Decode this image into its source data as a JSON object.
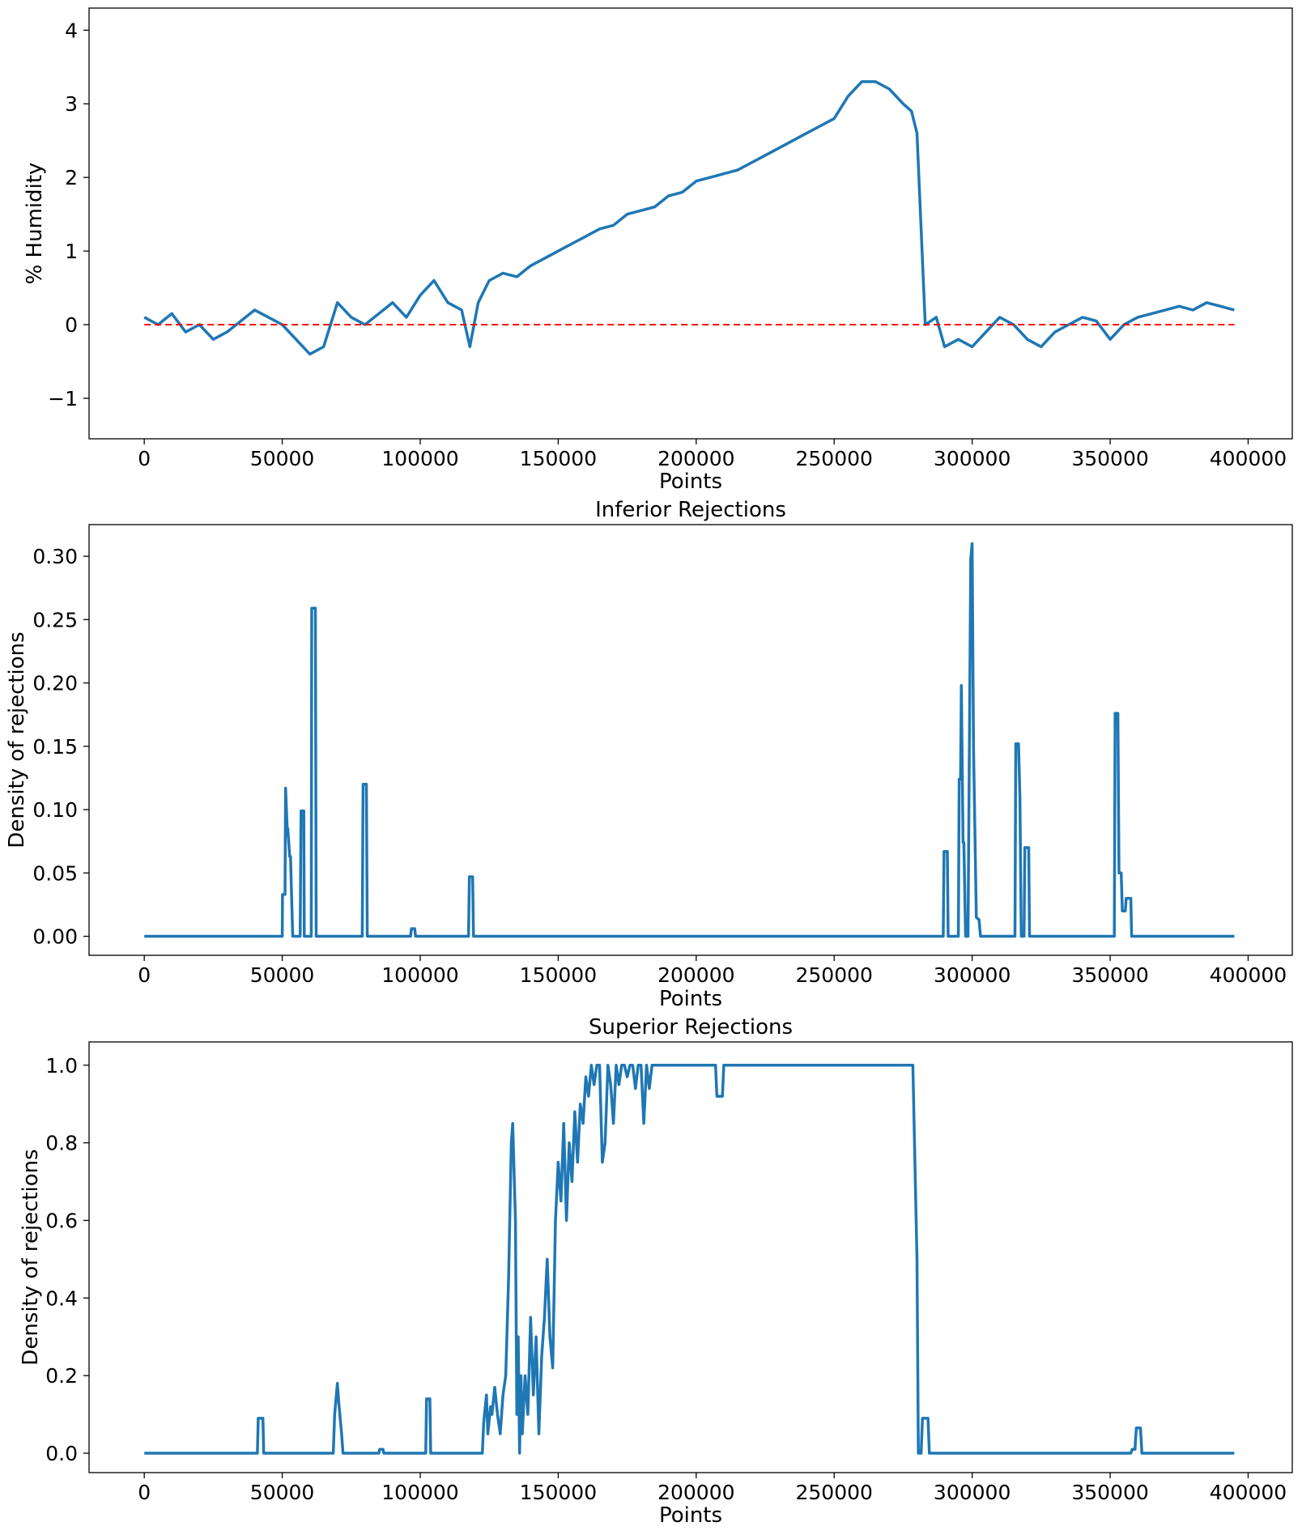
{
  "chart_data": [
    {
      "type": "line",
      "title": "",
      "xlabel": "Points",
      "ylabel": "% Humidity",
      "xlim": [
        -20000,
        416000
      ],
      "ylim": [
        -1.55,
        4.3
      ],
      "xticks": [
        0,
        50000,
        100000,
        150000,
        200000,
        250000,
        300000,
        350000,
        400000
      ],
      "xtick_labels": [
        "0",
        "50000",
        "100000",
        "150000",
        "200000",
        "250000",
        "300000",
        "350000",
        "400000"
      ],
      "yticks": [
        -1,
        0,
        1,
        2,
        3,
        4
      ],
      "ytick_labels": [
        "−1",
        "0",
        "1",
        "2",
        "3",
        "4"
      ],
      "grid": false,
      "series": [
        {
          "name": "humidity",
          "color": "#1f77b4",
          "x": [
            0,
            5000,
            10000,
            15000,
            20000,
            25000,
            30000,
            35000,
            40000,
            45000,
            50000,
            55000,
            60000,
            65000,
            70000,
            75000,
            80000,
            85000,
            90000,
            95000,
            100000,
            105000,
            110000,
            115000,
            118000,
            121000,
            125000,
            130000,
            135000,
            140000,
            145000,
            150000,
            155000,
            160000,
            165000,
            170000,
            175000,
            180000,
            185000,
            190000,
            195000,
            200000,
            205000,
            210000,
            215000,
            220000,
            225000,
            230000,
            235000,
            240000,
            245000,
            250000,
            255000,
            260000,
            265000,
            270000,
            275000,
            278000,
            280000,
            283000,
            287000,
            290000,
            295000,
            300000,
            305000,
            310000,
            315000,
            320000,
            325000,
            330000,
            335000,
            340000,
            345000,
            350000,
            355000,
            360000,
            365000,
            370000,
            375000,
            380000,
            385000,
            390000,
            395000
          ],
          "y": [
            0.1,
            0.0,
            0.15,
            -0.1,
            0.0,
            -0.2,
            -0.1,
            0.05,
            0.2,
            0.1,
            0.0,
            -0.2,
            -0.4,
            -0.3,
            0.3,
            0.1,
            0.0,
            0.15,
            0.3,
            0.1,
            0.4,
            0.6,
            0.3,
            0.2,
            -0.3,
            0.3,
            0.6,
            0.7,
            0.65,
            0.8,
            0.9,
            1.0,
            1.1,
            1.2,
            1.3,
            1.35,
            1.5,
            1.55,
            1.6,
            1.75,
            1.8,
            1.95,
            2.0,
            2.05,
            2.1,
            2.2,
            2.3,
            2.4,
            2.5,
            2.6,
            2.7,
            2.8,
            3.1,
            3.3,
            3.3,
            3.2,
            3.0,
            2.9,
            2.6,
            0.0,
            0.1,
            -0.3,
            -0.2,
            -0.3,
            -0.1,
            0.1,
            0.0,
            -0.2,
            -0.3,
            -0.1,
            0.0,
            0.1,
            0.05,
            -0.2,
            0.0,
            0.1,
            0.15,
            0.2,
            0.25,
            0.2,
            0.3,
            0.25,
            0.2
          ]
        },
        {
          "name": "zero reference",
          "color": "#ff0000",
          "style": "dashed",
          "x": [
            0,
            395000
          ],
          "y": [
            0,
            0
          ]
        }
      ]
    },
    {
      "type": "line",
      "title": "Inferior Rejections",
      "xlabel": "Points",
      "ylabel": "Density of rejections",
      "xlim": [
        -20000,
        416000
      ],
      "ylim": [
        -0.015,
        0.325
      ],
      "xticks": [
        0,
        50000,
        100000,
        150000,
        200000,
        250000,
        300000,
        350000,
        400000
      ],
      "xtick_labels": [
        "0",
        "50000",
        "100000",
        "150000",
        "200000",
        "250000",
        "300000",
        "350000",
        "400000"
      ],
      "yticks": [
        0.0,
        0.05,
        0.1,
        0.15,
        0.2,
        0.25,
        0.3
      ],
      "ytick_labels": [
        "0.00",
        "0.05",
        "0.10",
        "0.15",
        "0.20",
        "0.25",
        "0.30"
      ],
      "grid": false,
      "series": [
        {
          "name": "inferior",
          "color": "#1f77b4",
          "x": [
            0,
            50000,
            50100,
            51000,
            51200,
            51800,
            52000,
            52700,
            53000,
            53800,
            54000,
            55000,
            55500,
            56500,
            56800,
            57800,
            58000,
            60500,
            60700,
            62000,
            62300,
            79000,
            79300,
            80500,
            80800,
            96500,
            96800,
            98000,
            98300,
            117500,
            117800,
            119000,
            119300,
            289500,
            289800,
            291000,
            291300,
            295000,
            295300,
            295800,
            296100,
            296700,
            297000,
            297600,
            298500,
            299500,
            300000,
            300500,
            301000,
            301500,
            302500,
            303000,
            315500,
            315800,
            316800,
            317300,
            317800,
            318800,
            319100,
            320500,
            320800,
            351500,
            351800,
            352800,
            353200,
            354000,
            354400,
            355500,
            355800,
            357500,
            357800,
            395000
          ],
          "y": [
            0,
            0,
            0.033,
            0.033,
            0.117,
            0.085,
            0.085,
            0.063,
            0.063,
            0,
            0,
            0,
            0,
            0,
            0.099,
            0.099,
            0,
            0,
            0.259,
            0.259,
            0,
            0,
            0.12,
            0.12,
            0,
            0,
            0.006,
            0.006,
            0,
            0,
            0.047,
            0.047,
            0,
            0,
            0.067,
            0.067,
            0,
            0,
            0.124,
            0.124,
            0.198,
            0.074,
            0.074,
            0.0,
            0.0,
            0.298,
            0.31,
            0.15,
            0.08,
            0.015,
            0.013,
            0,
            0,
            0.152,
            0.152,
            0.11,
            0,
            0,
            0.07,
            0.07,
            0,
            0,
            0.176,
            0.176,
            0.05,
            0.05,
            0.02,
            0.02,
            0.03,
            0.03,
            0,
            0
          ]
        }
      ]
    },
    {
      "type": "line",
      "title": "Superior Rejections",
      "xlabel": "Points",
      "ylabel": "Density of rejections",
      "xlim": [
        -20000,
        416000
      ],
      "ylim": [
        -0.05,
        1.06
      ],
      "xticks": [
        0,
        50000,
        100000,
        150000,
        200000,
        250000,
        300000,
        350000,
        400000
      ],
      "xtick_labels": [
        "0",
        "50000",
        "100000",
        "150000",
        "200000",
        "250000",
        "300000",
        "350000",
        "400000"
      ],
      "yticks": [
        0.0,
        0.2,
        0.4,
        0.6,
        0.8,
        1.0
      ],
      "ytick_labels": [
        "0.0",
        "0.2",
        "0.4",
        "0.6",
        "0.8",
        "1.0"
      ],
      "grid": false,
      "series": [
        {
          "name": "superior",
          "color": "#1f77b4",
          "x": [
            0,
            41000,
            41300,
            43000,
            43300,
            68500,
            69000,
            70000,
            70500,
            71500,
            72000,
            85000,
            85300,
            86500,
            86800,
            102000,
            102300,
            103500,
            103800,
            122500,
            123000,
            124000,
            124500,
            125500,
            126000,
            127000,
            128000,
            129000,
            130000,
            131000,
            132000,
            133000,
            133500,
            134500,
            135000,
            135500,
            136000,
            136500,
            137000,
            138000,
            139000,
            140000,
            141000,
            142000,
            143000,
            144000,
            145000,
            146000,
            147000,
            148000,
            149000,
            150000,
            151000,
            152000,
            153000,
            154000,
            155000,
            156000,
            157000,
            158000,
            159000,
            160000,
            161000,
            162000,
            163000,
            164000,
            165000,
            166000,
            167000,
            168000,
            169000,
            170000,
            171000,
            172000,
            173000,
            174000,
            175000,
            176000,
            177000,
            178000,
            179000,
            180000,
            181000,
            182000,
            183000,
            184000,
            185000,
            186000,
            207000,
            207500,
            209500,
            210000,
            278000,
            278500,
            280000,
            280500,
            281500,
            282000,
            284000,
            284500,
            357500,
            358000,
            359000,
            359500,
            361000,
            361500,
            395000
          ],
          "y": [
            0,
            0,
            0.09,
            0.09,
            0,
            0,
            0.1,
            0.18,
            0.13,
            0.05,
            0,
            0,
            0.01,
            0.01,
            0,
            0,
            0.14,
            0.14,
            0,
            0,
            0.08,
            0.15,
            0.05,
            0.12,
            0.1,
            0.17,
            0.1,
            0.05,
            0.15,
            0.2,
            0.45,
            0.8,
            0.85,
            0.6,
            0.1,
            0.3,
            0.0,
            0.2,
            0.05,
            0.2,
            0.1,
            0.35,
            0.15,
            0.3,
            0.05,
            0.25,
            0.35,
            0.5,
            0.3,
            0.22,
            0.6,
            0.75,
            0.65,
            0.85,
            0.6,
            0.8,
            0.7,
            0.88,
            0.75,
            0.9,
            0.85,
            0.97,
            0.92,
            1.0,
            0.95,
            1.0,
            1.0,
            0.75,
            0.8,
            1.0,
            0.95,
            0.85,
            1.0,
            0.95,
            1.0,
            1.0,
            0.97,
            1.0,
            1.0,
            0.94,
            1.0,
            1.0,
            0.85,
            1.0,
            0.94,
            1.0,
            1.0,
            1.0,
            1.0,
            0.92,
            0.92,
            1.0,
            1.0,
            1.0,
            0.5,
            0.0,
            0.0,
            0.09,
            0.09,
            0,
            0,
            0.01,
            0.01,
            0.065,
            0.065,
            0,
            0
          ]
        }
      ]
    }
  ]
}
